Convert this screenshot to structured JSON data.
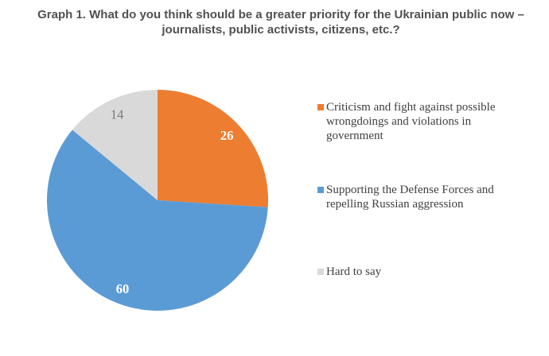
{
  "chart_data": {
    "type": "pie",
    "title": "Graph 1. What do you think should be a greater priority for the Ukrainian public now –\njournalists, public activists, citizens, etc.?",
    "start_angle_deg": 0,
    "direction": "clockwise",
    "legend_position": "right",
    "data_labels": "inside",
    "slices": [
      {
        "label": "Criticism and fight against possible wrongdoings and violations in government",
        "legend_text": "Criticism and fight against possible\nwrongdoings and violations in\ngovernment",
        "value": 26,
        "color": "#ED7D31",
        "value_label_color": "#FFFFFF",
        "value_label_bold": true
      },
      {
        "label": "Supporting the Defense Forces and repelling Russian aggression",
        "legend_text": "Supporting the Defense Forces and\nrepelling Russian aggression",
        "value": 60,
        "color": "#5B9BD5",
        "value_label_color": "#FFFFFF",
        "value_label_bold": true
      },
      {
        "label": "Hard to say",
        "legend_text": "Hard to say",
        "value": 14,
        "color": "#D9D9D9",
        "value_label_color": "#7A7A7A",
        "value_label_bold": false
      }
    ],
    "title_color": "#515151",
    "legend_text_color": "#404040"
  }
}
